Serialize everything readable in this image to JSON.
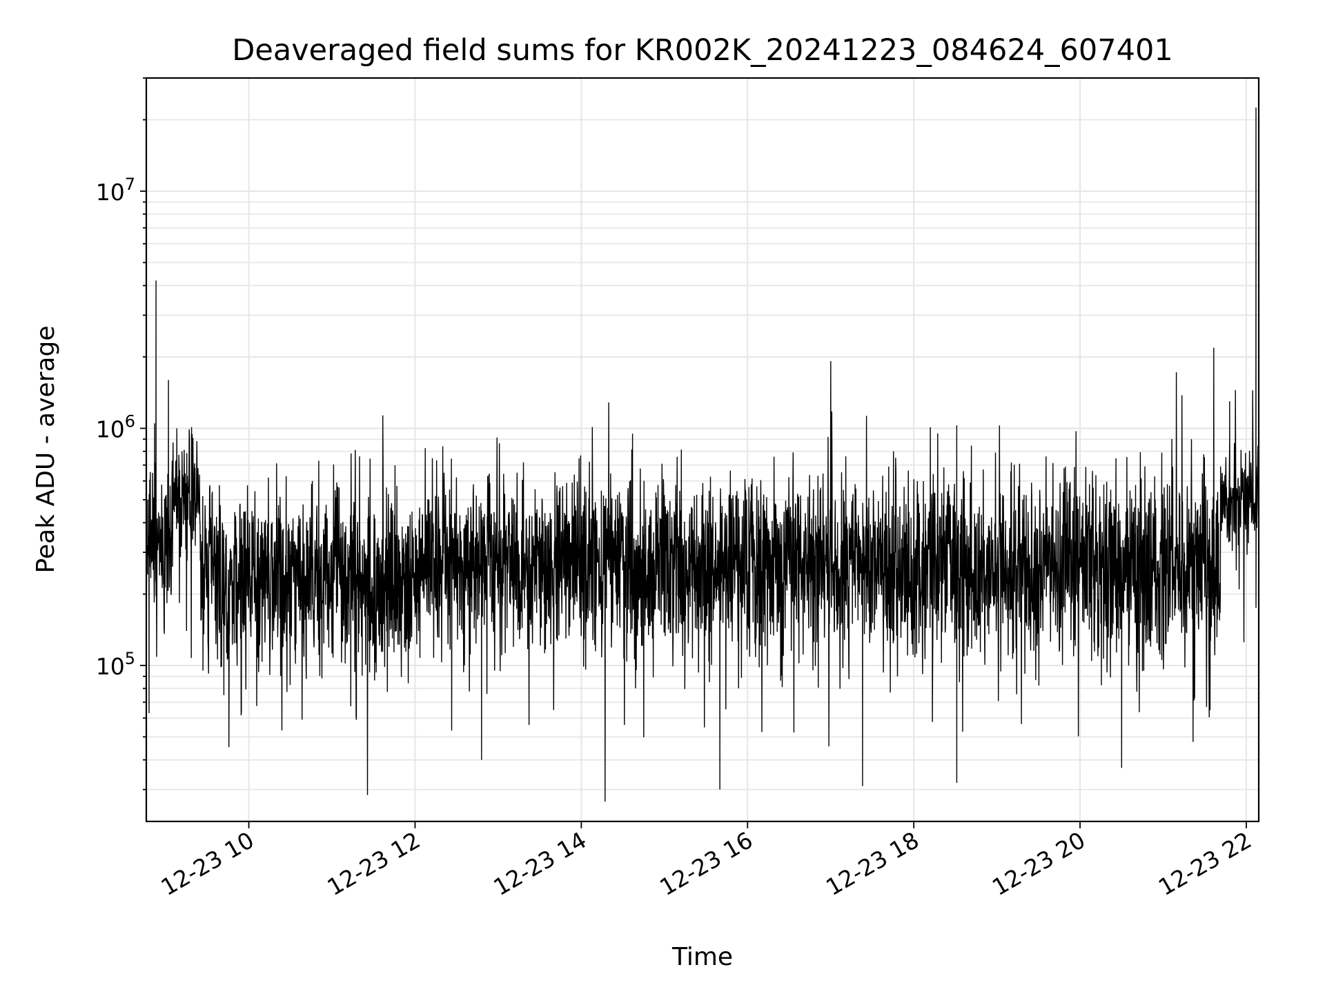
{
  "chart_data": {
    "type": "line",
    "title": "Deaveraged field sums for KR002K_20241223_084624_607401",
    "xlabel": "Time",
    "ylabel": "Peak ADU - average",
    "yscale": "log",
    "grid": true,
    "xlim": [
      "2024-12-23 08:46",
      "2024-12-23 22:09"
    ],
    "ylim": [
      22000,
      30000000
    ],
    "xticks": [
      "12-23 10",
      "12-23 12",
      "12-23 14",
      "12-23 16",
      "12-23 18",
      "12-23 20",
      "12-23 22"
    ],
    "yticks": [
      {
        "base": "10",
        "exp": "5",
        "value": 100000
      },
      {
        "base": "10",
        "exp": "6",
        "value": 1000000
      },
      {
        "base": "10",
        "exp": "7",
        "value": 10000000
      }
    ],
    "series": [
      {
        "color": "#000000",
        "segments": [
          {
            "start": "2024-12-23 08:46",
            "end": "2024-12-23 09:05",
            "median": 330000,
            "spread": 0.22
          },
          {
            "start": "2024-12-23 09:05",
            "end": "2024-12-23 09:25",
            "median": 520000,
            "spread": 0.16
          },
          {
            "start": "2024-12-23 09:25",
            "end": "2024-12-23 12:00",
            "median": 230000,
            "spread": 0.26
          },
          {
            "start": "2024-12-23 12:00",
            "end": "2024-12-23 14:30",
            "median": 270000,
            "spread": 0.25
          },
          {
            "start": "2024-12-23 14:30",
            "end": "2024-12-23 18:00",
            "median": 265000,
            "spread": 0.27
          },
          {
            "start": "2024-12-23 18:00",
            "end": "2024-12-23 21:42",
            "median": 255000,
            "spread": 0.27
          },
          {
            "start": "2024-12-23 21:42",
            "end": "2024-12-23 22:09",
            "median": 500000,
            "spread": 0.14
          }
        ],
        "peaks": [
          {
            "time": "2024-12-23 08:48",
            "value": 63000
          },
          {
            "time": "2024-12-23 08:52",
            "value": 1050000
          },
          {
            "time": "2024-12-23 08:53",
            "value": 4200000
          },
          {
            "time": "2024-12-23 09:02",
            "value": 1600000
          },
          {
            "time": "2024-12-23 09:08",
            "value": 1000000
          },
          {
            "time": "2024-12-23 09:42",
            "value": 75000
          },
          {
            "time": "2024-12-23 12:20",
            "value": 840000
          },
          {
            "time": "2024-12-23 12:48",
            "value": 40000
          },
          {
            "time": "2024-12-23 14:37",
            "value": 950000
          },
          {
            "time": "2024-12-23 15:40",
            "value": 30000
          },
          {
            "time": "2024-12-23 17:23",
            "value": 31000
          },
          {
            "time": "2024-12-23 18:31",
            "value": 1030000
          },
          {
            "time": "2024-12-23 18:31",
            "value": 32000
          },
          {
            "time": "2024-12-23 20:30",
            "value": 37000
          },
          {
            "time": "2024-12-23 20:59",
            "value": 790000
          },
          {
            "time": "2024-12-23 21:48",
            "value": 1300000
          },
          {
            "time": "2024-12-23 22:07",
            "value": 22500000
          },
          {
            "time": "2024-12-23 22:07",
            "value": 175000
          }
        ]
      }
    ]
  }
}
